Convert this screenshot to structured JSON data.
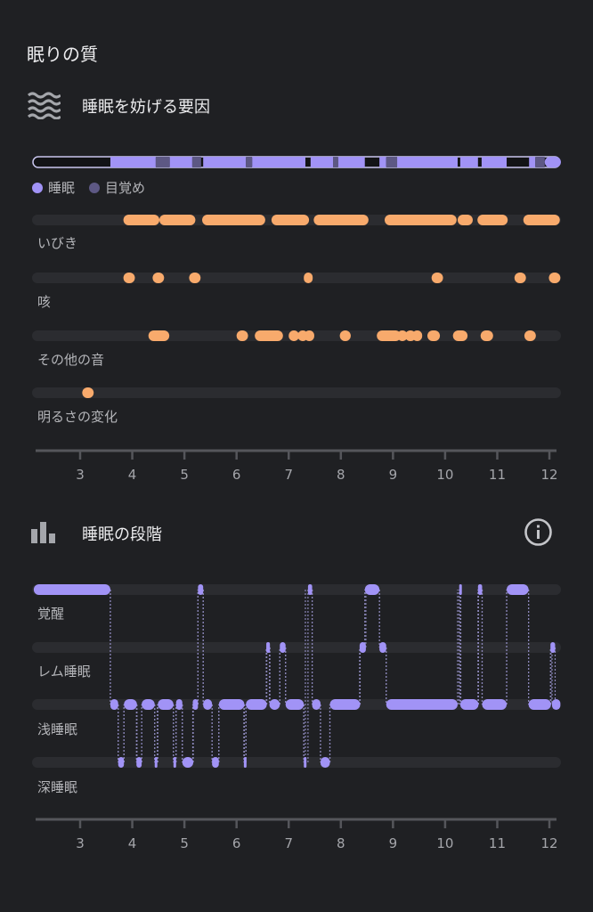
{
  "page_title": "眠りの質",
  "colors": {
    "background": "#1f2023",
    "track": "#2b2c30",
    "sleep": "#a193f6",
    "awake": "#5d5884",
    "event": "#f8aa6c",
    "axis": "#55565b",
    "connector": "#8a86b8"
  },
  "disturbances": {
    "title": "睡眠を妨げる要因",
    "icon": "waves-icon",
    "legend": [
      {
        "label": "睡眠",
        "color": "#a193f6"
      },
      {
        "label": "目覚め",
        "color": "#5d5884"
      }
    ]
  },
  "stages": {
    "title": "睡眠の段階",
    "icon": "bar-chart-icon",
    "info_icon": "info-icon"
  },
  "chart_data": [
    {
      "type": "timeline",
      "name": "disturbances",
      "x_ticks": [
        3,
        4,
        5,
        6,
        7,
        8,
        9,
        10,
        11,
        12
      ],
      "xlim": [
        2.08,
        12.22
      ],
      "overview_bar": [
        {
          "state": "sleep",
          "start": 3.58,
          "end": 4.45
        },
        {
          "state": "awake",
          "start": 4.45,
          "end": 4.72
        },
        {
          "state": "sleep",
          "start": 4.72,
          "end": 5.15
        },
        {
          "state": "awake",
          "start": 5.15,
          "end": 5.32
        },
        {
          "state": "sleep",
          "start": 5.36,
          "end": 6.18
        },
        {
          "state": "awake",
          "start": 6.18,
          "end": 6.3
        },
        {
          "state": "sleep",
          "start": 6.3,
          "end": 7.32
        },
        {
          "state": "sleep",
          "start": 7.42,
          "end": 7.85
        },
        {
          "state": "awake",
          "start": 7.85,
          "end": 7.95
        },
        {
          "state": "sleep",
          "start": 7.95,
          "end": 8.46
        },
        {
          "state": "sleep",
          "start": 8.74,
          "end": 8.87
        },
        {
          "state": "awake",
          "start": 8.87,
          "end": 9.08
        },
        {
          "state": "sleep",
          "start": 9.08,
          "end": 10.24
        },
        {
          "state": "sleep",
          "start": 10.29,
          "end": 10.63
        },
        {
          "state": "sleep",
          "start": 10.7,
          "end": 11.18
        },
        {
          "state": "sleep",
          "start": 11.61,
          "end": 11.73
        },
        {
          "state": "awake",
          "start": 11.73,
          "end": 11.91
        },
        {
          "state": "sleep",
          "start": 11.91,
          "end": 12.22
        }
      ],
      "rows": [
        {
          "label": "いびき",
          "events": [
            [
              3.83,
              4.52
            ],
            [
              4.52,
              5.21
            ],
            [
              5.34,
              6.55
            ],
            [
              6.67,
              7.39
            ],
            [
              7.48,
              8.53
            ],
            [
              8.84,
              10.22
            ],
            [
              10.24,
              10.53
            ],
            [
              10.62,
              11.2
            ],
            [
              11.5,
              12.2
            ]
          ]
        },
        {
          "label": "咳",
          "events": [
            [
              3.83,
              4.05
            ],
            [
              4.39,
              4.61
            ],
            [
              5.09,
              5.31
            ],
            [
              7.29,
              7.46
            ],
            [
              9.74,
              9.96
            ],
            [
              11.33,
              11.55
            ],
            [
              11.99,
              12.21
            ]
          ]
        },
        {
          "label": "その他の音",
          "events": [
            [
              4.31,
              4.71
            ],
            [
              6.0,
              6.22
            ],
            [
              6.35,
              6.89
            ],
            [
              7.0,
              7.2
            ],
            [
              7.17,
              7.37
            ],
            [
              7.3,
              7.49
            ],
            [
              7.98,
              8.19
            ],
            [
              8.69,
              9.15
            ],
            [
              9.08,
              9.28
            ],
            [
              9.23,
              9.44
            ],
            [
              9.37,
              9.56
            ],
            [
              9.66,
              9.9
            ],
            [
              10.15,
              10.43
            ],
            [
              10.68,
              10.92
            ],
            [
              11.52,
              11.74
            ]
          ]
        },
        {
          "label": "明るさの変化",
          "events": [
            [
              3.04,
              3.26
            ]
          ]
        }
      ]
    },
    {
      "type": "timeline",
      "name": "sleep-stages",
      "x_ticks": [
        3,
        4,
        5,
        6,
        7,
        8,
        9,
        10,
        11,
        12
      ],
      "xlim": [
        2.08,
        12.22
      ],
      "rows": [
        {
          "label": "覚醒",
          "events": [
            [
              2.11,
              3.58
            ],
            [
              5.26,
              5.36
            ],
            [
              7.37,
              7.45
            ],
            [
              8.46,
              8.74
            ],
            [
              10.27,
              10.3
            ],
            [
              10.63,
              10.71
            ],
            [
              11.18,
              11.6
            ]
          ]
        },
        {
          "label": "レム睡眠",
          "events": [
            [
              6.57,
              6.64
            ],
            [
              6.83,
              6.94
            ],
            [
              8.36,
              8.48
            ],
            [
              8.74,
              8.87
            ],
            [
              12.02,
              12.11
            ]
          ]
        },
        {
          "label": "浅睡眠",
          "events": [
            [
              3.58,
              3.73
            ],
            [
              3.84,
              4.09
            ],
            [
              4.18,
              4.43
            ],
            [
              4.49,
              4.79
            ],
            [
              4.84,
              4.96
            ],
            [
              5.16,
              5.26
            ],
            [
              5.36,
              5.53
            ],
            [
              5.66,
              6.15
            ],
            [
              6.18,
              6.58
            ],
            [
              6.63,
              6.83
            ],
            [
              6.94,
              7.29
            ],
            [
              7.45,
              7.61
            ],
            [
              7.79,
              8.37
            ],
            [
              8.87,
              10.24
            ],
            [
              10.29,
              10.64
            ],
            [
              10.71,
              11.18
            ],
            [
              11.6,
              12.03
            ],
            [
              12.05,
              12.21
            ]
          ]
        },
        {
          "label": "深睡眠",
          "events": [
            [
              3.73,
              3.84
            ],
            [
              4.08,
              4.18
            ],
            [
              4.43,
              4.48
            ],
            [
              4.79,
              4.84
            ],
            [
              4.96,
              5.17
            ],
            [
              5.53,
              5.66
            ],
            [
              6.14,
              6.18
            ],
            [
              7.29,
              7.32
            ],
            [
              7.61,
              7.79
            ]
          ]
        }
      ]
    }
  ]
}
